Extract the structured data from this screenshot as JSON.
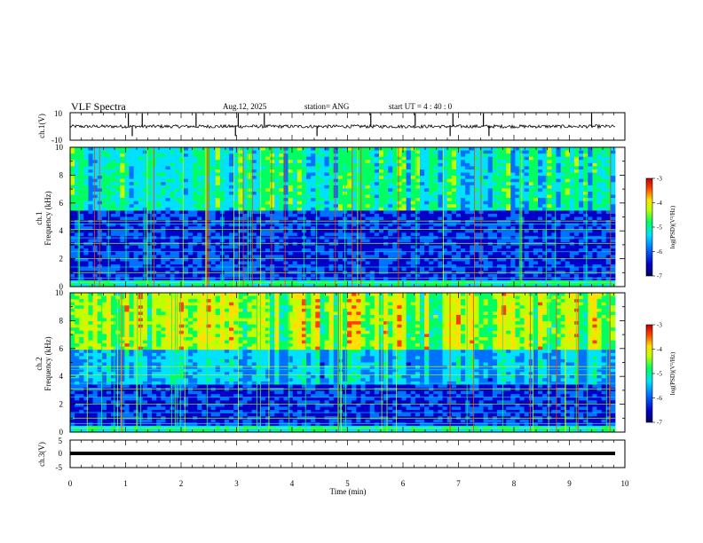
{
  "header": {
    "title": "VLF Spectra",
    "date": "Aug.12, 2025",
    "station": "station= ANG",
    "start": "start  UT =   4 : 40 : 0"
  },
  "chart_data": [
    {
      "type": "line",
      "id": "ch1-waveform",
      "ylabel": "ch.1(V)",
      "ylim": [
        -10,
        10
      ],
      "ytick_labels": [
        "10",
        "-10"
      ],
      "xlim": [
        0,
        10
      ],
      "baseline": 0,
      "noise_amplitude": 1.2,
      "spike_times_min": [
        1.05,
        1.12,
        1.3,
        2.27,
        2.98,
        3.03,
        3.5,
        4.45,
        5.42,
        6.22,
        6.85,
        6.9,
        7.45,
        7.55,
        9.4
      ]
    },
    {
      "type": "heatmap",
      "id": "ch1-spectrogram",
      "ylabel": "ch.1",
      "ylabel2": "Frequency (kHz)",
      "ylim": [
        0,
        10
      ],
      "ytick_labels": [
        "0",
        "2",
        "4",
        "6",
        "8",
        "10"
      ],
      "xlim": [
        0,
        10
      ],
      "colorbar": {
        "label": "log(PSD)(V²/Hz)",
        "range": [
          -7,
          -3
        ],
        "tick_labels": [
          "-3",
          "-4",
          "-5",
          "-6",
          "-7"
        ]
      }
    },
    {
      "type": "heatmap",
      "id": "ch2-spectrogram",
      "ylabel": "ch.2",
      "ylabel2": "Frequency (kHz)",
      "ylim": [
        0,
        10
      ],
      "ytick_labels": [
        "0",
        "2",
        "4",
        "6",
        "8",
        "10"
      ],
      "xlim": [
        0,
        10
      ],
      "colorbar": {
        "label": "log(PSD)(V²/Hz)",
        "range": [
          -7,
          -3
        ],
        "tick_labels": [
          "-3",
          "-4",
          "-5",
          "-6",
          "-7"
        ]
      }
    },
    {
      "type": "line",
      "id": "ch3-waveform",
      "ylabel": "ch.3(V)",
      "ylim": [
        -5,
        5
      ],
      "ytick_labels": [
        "5",
        "0",
        "-5"
      ],
      "xlim": [
        0,
        10
      ],
      "baseline": 0,
      "xlabel": "Time (min)",
      "xtick_labels": [
        "0",
        "1",
        "2",
        "3",
        "4",
        "5",
        "6",
        "7",
        "8",
        "9",
        "10"
      ]
    }
  ],
  "colors": {
    "c0": "#000060",
    "c1": "#0000c8",
    "c2": "#0070ff",
    "c3": "#00e0ff",
    "c4": "#00ff60",
    "c5": "#c0ff00",
    "c6": "#ffe000",
    "c7": "#ff4000",
    "c8": "#c00000"
  }
}
